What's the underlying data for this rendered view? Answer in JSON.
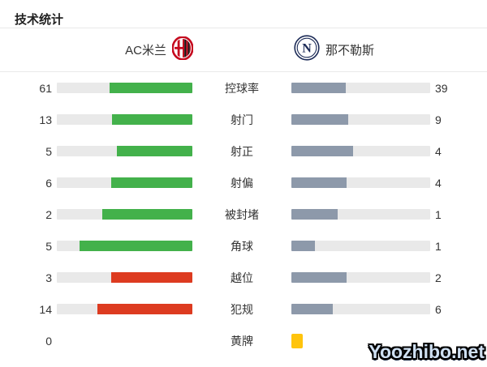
{
  "title": "技术统计",
  "teams": {
    "home": {
      "name": "AC米兰"
    },
    "away": {
      "name": "那不勒斯",
      "initial": "N"
    }
  },
  "colors": {
    "home_positive": "#43b14b",
    "home_negative": "#dd3b20",
    "away_bar": "#8d99aa",
    "track": "#e9e9e9",
    "card": "#ffc40d",
    "milan_red": "#c5091e",
    "milan_black": "#171717",
    "napoli_navy": "#1c2b57"
  },
  "stats": [
    {
      "label": "控球率",
      "home_value": "61",
      "away_value": "39",
      "home_fill_pct": 61.0,
      "away_fill_pct": 39.0,
      "home_bar": "green",
      "away_bar": "blue"
    },
    {
      "label": "射门",
      "home_value": "13",
      "away_value": "9",
      "home_fill_pct": 59.1,
      "away_fill_pct": 40.9,
      "home_bar": "green",
      "away_bar": "blue"
    },
    {
      "label": "射正",
      "home_value": "5",
      "away_value": "4",
      "home_fill_pct": 55.6,
      "away_fill_pct": 44.4,
      "home_bar": "green",
      "away_bar": "blue"
    },
    {
      "label": "射偏",
      "home_value": "6",
      "away_value": "4",
      "home_fill_pct": 60.0,
      "away_fill_pct": 40.0,
      "home_bar": "green",
      "away_bar": "blue"
    },
    {
      "label": "被封堵",
      "home_value": "2",
      "away_value": "1",
      "home_fill_pct": 66.7,
      "away_fill_pct": 33.3,
      "home_bar": "green",
      "away_bar": "blue"
    },
    {
      "label": "角球",
      "home_value": "5",
      "away_value": "1",
      "home_fill_pct": 83.3,
      "away_fill_pct": 16.7,
      "home_bar": "green",
      "away_bar": "blue"
    },
    {
      "label": "越位",
      "home_value": "3",
      "away_value": "2",
      "home_fill_pct": 60.0,
      "away_fill_pct": 40.0,
      "home_bar": "red",
      "away_bar": "blue"
    },
    {
      "label": "犯规",
      "home_value": "14",
      "away_value": "6",
      "home_fill_pct": 70.0,
      "away_fill_pct": 30.0,
      "home_bar": "red",
      "away_bar": "blue"
    },
    {
      "label": "黄牌",
      "home_value": "0",
      "away_value": "",
      "home_fill_pct": 0,
      "away_fill_pct": 0,
      "home_bar": "none",
      "away_bar": "card",
      "away_cards": 1
    }
  ],
  "watermark": "Yoozhibo.net",
  "chart_data": {
    "type": "bar",
    "title": "技术统计",
    "categories": [
      "控球率",
      "射门",
      "射正",
      "射偏",
      "被封堵",
      "角球",
      "越位",
      "犯规",
      "黄牌"
    ],
    "series": [
      {
        "name": "AC米兰",
        "values": [
          61,
          13,
          5,
          6,
          2,
          5,
          3,
          14,
          0
        ]
      },
      {
        "name": "那不勒斯",
        "values": [
          39,
          9,
          4,
          4,
          1,
          1,
          2,
          6,
          1
        ]
      }
    ],
    "layout": "paired horizontal bars per category; each bar fill fraction = value / (home+away); home bars anchored right (green, red for negative stats 越位/犯规), away bars anchored left (slate blue); away 黄牌 shown as one yellow card icon"
  }
}
